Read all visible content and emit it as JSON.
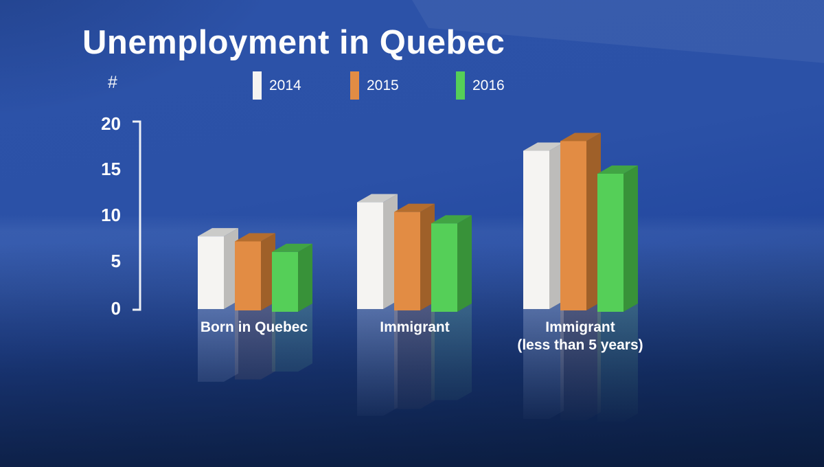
{
  "title": "Unemployment in Quebec",
  "y_axis_unit_symbol": "#",
  "legend": [
    {
      "year": "2014",
      "color": "#F5F4F2"
    },
    {
      "year": "2015",
      "color": "#E28C44"
    },
    {
      "year": "2016",
      "color": "#55CF58"
    }
  ],
  "categories_display": [
    {
      "line1": "Born in Quebec",
      "line2": ""
    },
    {
      "line1": "Immigrant",
      "line2": ""
    },
    {
      "line1": "Immigrant",
      "line2": "(less than 5 years)"
    }
  ],
  "chart_data": {
    "type": "bar",
    "title": "Unemployment in Quebec",
    "ylabel": "#",
    "ylim": [
      0,
      20
    ],
    "yticks": [
      0,
      5,
      10,
      15,
      20
    ],
    "grid": false,
    "legend_position": "top",
    "style": "3d-extruded-bars-with-floor-reflection",
    "background": "royal-blue-broadcast-gradient",
    "categories": [
      "Born in Quebec",
      "Immigrant",
      "Immigrant (less than 5 years)"
    ],
    "series": [
      {
        "name": "2014",
        "color": "#F5F4F2",
        "color_top": "#CBCBC9",
        "color_side": "#BDBCBA",
        "values": [
          7.9,
          11.6,
          17.2
        ]
      },
      {
        "name": "2015",
        "color": "#E28C44",
        "color_top": "#B46D2E",
        "color_side": "#9F6029",
        "values": [
          7.5,
          10.7,
          18.4
        ]
      },
      {
        "name": "2016",
        "color": "#55CF58",
        "color_top": "#41A444",
        "color_side": "#389239",
        "values": [
          6.5,
          9.6,
          15.0
        ]
      }
    ]
  }
}
